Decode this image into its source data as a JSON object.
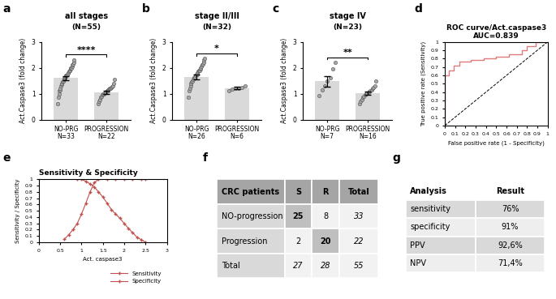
{
  "chart_data": [
    {
      "panel": "a",
      "type": "bar",
      "title": "all stages",
      "subtitle": "(N=55)",
      "categories": [
        "NO-PRG",
        "PROGRESSION"
      ],
      "values": [
        1.6,
        1.05
      ],
      "errors": [
        0.07,
        0.05
      ],
      "points": [
        [
          0.62,
          0.85,
          1.0,
          1.1,
          1.15,
          1.2,
          1.3,
          1.35,
          1.4,
          1.45,
          1.5,
          1.5,
          1.55,
          1.6,
          1.6,
          1.65,
          1.7,
          1.7,
          1.75,
          1.75,
          1.8,
          1.8,
          1.85,
          1.9,
          1.9,
          1.95,
          2.0,
          2.0,
          2.05,
          2.1,
          2.15,
          2.2,
          2.3
        ],
        [
          0.6,
          0.7,
          0.78,
          0.85,
          0.9,
          0.95,
          0.98,
          1.0,
          1.02,
          1.05,
          1.08,
          1.1,
          1.12,
          1.15,
          1.18,
          1.2,
          1.22,
          1.25,
          1.28,
          1.3,
          1.4,
          1.55
        ]
      ],
      "n_labels": [
        "N=33",
        "N=22"
      ],
      "significance": "****",
      "ylabel": "Act.Caspase3 (fold change)",
      "ylim": [
        0,
        3
      ],
      "yticks": [
        0,
        1,
        2,
        3
      ],
      "color": "#d9d9d9"
    },
    {
      "panel": "b",
      "type": "bar",
      "title": "stage II/III",
      "subtitle": "(N=32)",
      "categories": [
        "NO-PRG",
        "PROGRESSION"
      ],
      "values": [
        1.65,
        1.22
      ],
      "errors": [
        0.09,
        0.04
      ],
      "points": [
        [
          0.85,
          1.1,
          1.2,
          1.3,
          1.4,
          1.45,
          1.5,
          1.55,
          1.6,
          1.6,
          1.65,
          1.7,
          1.75,
          1.75,
          1.8,
          1.85,
          1.9,
          1.9,
          1.95,
          2.0,
          2.05,
          2.1,
          2.15,
          2.2,
          2.3,
          2.35
        ],
        [
          1.12,
          1.18,
          1.2,
          1.22,
          1.25,
          1.3
        ]
      ],
      "n_labels": [
        "N=26",
        "N=6"
      ],
      "significance": "*",
      "ylabel": "Act.Caspase3 (fold change)",
      "ylim": [
        0,
        3
      ],
      "yticks": [
        0,
        1,
        2,
        3
      ],
      "color": "#d9d9d9"
    },
    {
      "panel": "c",
      "type": "bar",
      "title": "stage IV",
      "subtitle": "(N=23)",
      "categories": [
        "NO-PRG",
        "PROGRESSION"
      ],
      "values": [
        1.48,
        1.02
      ],
      "errors": [
        0.2,
        0.07
      ],
      "points": [
        [
          0.92,
          1.15,
          1.3,
          1.5,
          1.6,
          1.95,
          2.2
        ],
        [
          0.6,
          0.7,
          0.78,
          0.85,
          0.9,
          0.95,
          1.0,
          1.02,
          1.05,
          1.08,
          1.1,
          1.15,
          1.2,
          1.25,
          1.3,
          1.5
        ]
      ],
      "n_labels": [
        "N=7",
        "N=16"
      ],
      "significance": "**",
      "ylabel": "Act.Caspase3 (fold change)",
      "ylim": [
        0,
        3
      ],
      "yticks": [
        0,
        1,
        2,
        3
      ],
      "color": "#d9d9d9"
    },
    {
      "panel": "d",
      "type": "line",
      "title": "ROC curve/Act.caspase3",
      "subtitle": "AUC=0.839",
      "x": [
        0,
        0,
        0.04,
        0.04,
        0.09,
        0.09,
        0.14,
        0.14,
        0.25,
        0.25,
        0.38,
        0.38,
        0.5,
        0.5,
        0.62,
        0.62,
        0.75,
        0.75,
        0.8,
        0.8,
        0.88,
        0.88,
        1
      ],
      "values": [
        0,
        0.6,
        0.6,
        0.66,
        0.66,
        0.72,
        0.72,
        0.76,
        0.76,
        0.78,
        0.78,
        0.8,
        0.8,
        0.82,
        0.82,
        0.85,
        0.85,
        0.9,
        0.9,
        0.95,
        0.95,
        1,
        1
      ],
      "color": "#e07b7b",
      "line_style": "solid",
      "xlabel": "False positive rate (1 - Specificity)",
      "ylabel": "True positive rate (Sensitivity)",
      "xlim": [
        0,
        1
      ],
      "ylim": [
        0,
        1
      ],
      "xticks": [
        0,
        0.1,
        0.2,
        0.3,
        0.4,
        0.5,
        0.6,
        0.7,
        0.8,
        0.9,
        1
      ],
      "yticks": [
        0,
        0.1,
        0.2,
        0.3,
        0.4,
        0.5,
        0.6,
        0.7,
        0.8,
        0.9,
        1
      ]
    },
    {
      "panel": "e",
      "type": "line",
      "title": "Sensitivity & Specificity",
      "series": [
        {
          "name": "Sensitivity",
          "color": "#c0504d",
          "marker": "plus",
          "line_style": "solid",
          "x": [
            0.6,
            0.7,
            0.8,
            0.9,
            1.0,
            1.1,
            1.2,
            1.3,
            1.4,
            1.6,
            1.8,
            2.0,
            2.2,
            2.4,
            2.5
          ],
          "values": [
            0.05,
            0.12,
            0.2,
            0.3,
            0.45,
            0.62,
            0.8,
            0.95,
            1,
            1,
            1,
            1,
            1,
            1,
            1
          ]
        },
        {
          "name": "Specificity",
          "color": "#c0504d",
          "marker": "plus",
          "line_style": "solid",
          "x": [
            0.9,
            1.0,
            1.1,
            1.2,
            1.3,
            1.4,
            1.5,
            1.6,
            1.7,
            1.8,
            1.9,
            2.0,
            2.1,
            2.2,
            2.3,
            2.4,
            2.5
          ],
          "values": [
            1,
            1,
            0.97,
            0.93,
            0.88,
            0.8,
            0.72,
            0.62,
            0.52,
            0.45,
            0.38,
            0.3,
            0.22,
            0.15,
            0.08,
            0.04,
            0
          ]
        }
      ],
      "xlabel": "Act. caspase3",
      "ylabel": "Sensitivity / Specificity",
      "xlim": [
        0,
        3
      ],
      "ylim": [
        0,
        1
      ],
      "xticks": [
        0,
        0.5,
        1,
        1.5,
        2,
        2.5,
        3
      ],
      "yticks": [
        0,
        0.1,
        0.2,
        0.3,
        0.4,
        0.5,
        0.6,
        0.7,
        0.8,
        0.9,
        1
      ],
      "legend": "lower right"
    }
  ],
  "tables": [
    {
      "panel": "f",
      "header": [
        "CRC patients",
        "S",
        "R",
        "Total"
      ],
      "rows": [
        [
          "NO-progression",
          25,
          8,
          33
        ],
        [
          "Progression",
          2,
          20,
          22
        ],
        [
          "Total",
          27,
          28,
          55
        ]
      ]
    },
    {
      "panel": "g",
      "header": [
        "Analysis",
        "Result"
      ],
      "rows": [
        [
          "sensitivity",
          "76%"
        ],
        [
          "specificity",
          "91%"
        ],
        [
          "PPV",
          "92,6%"
        ],
        [
          "NPV",
          "71,4%"
        ]
      ]
    }
  ]
}
